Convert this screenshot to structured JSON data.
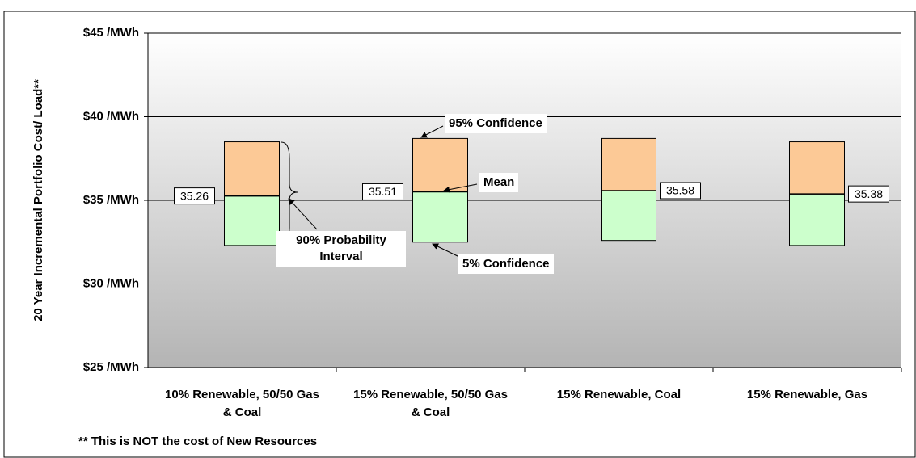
{
  "chart_data": {
    "type": "range",
    "y_label": "20 Year Incremental Portfolio Cost/ Load**",
    "categories": [
      "10% Renewable, 50/50 Gas & Coal",
      "15% Renewable, 50/50 Gas & Coal",
      "15% Renewable, Coal",
      "15% Renewable, Gas"
    ],
    "lows": [
      32.3,
      32.5,
      32.6,
      32.3
    ],
    "means": [
      35.26,
      35.51,
      35.58,
      35.38
    ],
    "highs": [
      38.5,
      38.7,
      38.7,
      38.5
    ],
    "lower_color": "#ccffcc",
    "upper_color": "#fcc996",
    "ylim": [
      25,
      45
    ],
    "yticks": [
      {
        "value": 25,
        "label": "$25 /MWh"
      },
      {
        "value": 30,
        "label": "$30 /MWh"
      },
      {
        "value": 35,
        "label": "$35 /MWh"
      },
      {
        "value": 40,
        "label": "$40 /MWh"
      },
      {
        "value": 45,
        "label": "$45 /MWh"
      }
    ],
    "grid": true,
    "annotations": [
      "95% Confidence",
      "Mean",
      "5% Confidence",
      "90% Probability Interval"
    ],
    "footnote": "** This is NOT the cost of New Resources"
  }
}
